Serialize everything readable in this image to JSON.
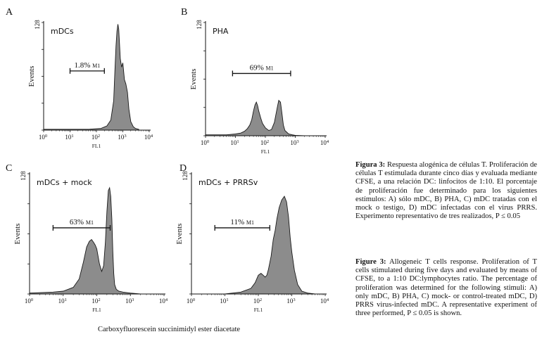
{
  "figure": {
    "xlabel": "Carboxyfluorescein succinimidyl ester diacetate",
    "axis_x_label": "FL1",
    "axis_y_label": "Events",
    "y_max_tick": "128",
    "gate_suffix": "M1",
    "x_tick_base": "10",
    "x_tick_exponents": [
      "0",
      "1",
      "2",
      "3",
      "4"
    ]
  },
  "panels": [
    {
      "letter": "A",
      "title": "mDCs",
      "gate_label": "1.8%"
    },
    {
      "letter": "B",
      "title": "PHA",
      "gate_label": "69%"
    },
    {
      "letter": "C",
      "title": "mDCs + mock",
      "gate_label": "63%"
    },
    {
      "letter": "D",
      "title": "mDCs + PRRSv",
      "gate_label": "11%"
    }
  ],
  "chart_data": [
    {
      "type": "area",
      "panel": "A",
      "title": "mDCs",
      "xlabel": "FL1",
      "ylabel": "Events",
      "xscale": "log",
      "xlim": [
        1,
        10000
      ],
      "ylim": [
        0,
        128
      ],
      "gate": {
        "name": "M1",
        "percent": 1.8,
        "range": [
          10,
          200
        ]
      },
      "x": [
        1,
        50,
        150,
        250,
        350,
        450,
        500,
        550,
        600,
        650,
        700,
        800,
        900,
        1000,
        1150,
        1300,
        1500,
        1700,
        2000,
        2500,
        3000,
        4000
      ],
      "y": [
        1,
        1,
        2,
        5,
        12,
        35,
        70,
        100,
        118,
        126,
        120,
        85,
        75,
        80,
        60,
        55,
        45,
        25,
        10,
        4,
        2,
        1
      ]
    },
    {
      "type": "area",
      "panel": "B",
      "title": "PHA",
      "xlabel": "FL1",
      "ylabel": "Events",
      "xscale": "log",
      "xlim": [
        1,
        10000
      ],
      "ylim": [
        0,
        128
      ],
      "gate": {
        "name": "M1",
        "percent": 69,
        "range": [
          8,
          700
        ]
      },
      "x": [
        1,
        5,
        10,
        15,
        20,
        25,
        30,
        35,
        40,
        45,
        50,
        55,
        60,
        70,
        80,
        100,
        130,
        160,
        200,
        250,
        280,
        320,
        360,
        400,
        450,
        520,
        600,
        800,
        1000,
        2000
      ],
      "y": [
        1,
        1,
        2,
        3,
        5,
        8,
        12,
        18,
        28,
        35,
        38,
        34,
        28,
        20,
        14,
        9,
        6,
        7,
        15,
        32,
        40,
        38,
        25,
        12,
        6,
        4,
        2,
        1,
        0.5,
        0
      ]
    },
    {
      "type": "area",
      "panel": "C",
      "title": "mDCs + mock",
      "xlabel": "FL1",
      "ylabel": "Events",
      "xscale": "log",
      "xlim": [
        1,
        10000
      ],
      "ylim": [
        0,
        128
      ],
      "gate": {
        "name": "M1",
        "percent": 63,
        "range": [
          5,
          250
        ]
      },
      "x": [
        1,
        5,
        10,
        20,
        30,
        40,
        50,
        60,
        70,
        80,
        90,
        100,
        120,
        140,
        160,
        180,
        200,
        220,
        240,
        260,
        280,
        300,
        320,
        340,
        380,
        450,
        600,
        1000,
        2000
      ],
      "y": [
        1,
        2,
        3,
        7,
        16,
        34,
        50,
        56,
        58,
        55,
        52,
        48,
        32,
        24,
        30,
        55,
        88,
        110,
        113,
        104,
        80,
        45,
        22,
        10,
        5,
        3,
        2,
        1,
        0
      ]
    },
    {
      "type": "area",
      "panel": "D",
      "title": "mDCs + PRRSv",
      "xlabel": "FL1",
      "ylabel": "Events",
      "xscale": "log",
      "xlim": [
        1,
        10000
      ],
      "ylim": [
        0,
        128
      ],
      "gate": {
        "name": "M1",
        "percent": 11,
        "range": [
          5,
          220
        ]
      },
      "x": [
        1,
        10,
        30,
        60,
        80,
        100,
        120,
        140,
        160,
        180,
        200,
        240,
        280,
        320,
        360,
        420,
        500,
        600,
        700,
        800,
        900,
        1000,
        1200,
        1500,
        2000,
        3000,
        5000
      ],
      "y": [
        0,
        0,
        2,
        6,
        12,
        20,
        22,
        20,
        18,
        20,
        26,
        40,
        58,
        68,
        80,
        92,
        100,
        104,
        98,
        82,
        60,
        45,
        25,
        10,
        3,
        1,
        0
      ]
    }
  ],
  "caption_es": {
    "label": "Figura 3:",
    "text": "Respuesta alogénica de células T. Proliferación de células T estimulada durante cinco días y evaluada mediante CFSE, a una relación DC: linfocitos de 1:10. El porcentaje de proliferación fue determinado para los siguientes estímulos: A) sólo mDC, B) PHA, C) mDC tratadas con el mock o testigo, D) mDC infectadas con el virus PRRS. Experimento representativo de tres realizados, P ≤ 0.05"
  },
  "caption_en": {
    "label": "Figure 3:",
    "text": "Allogeneic T cells response. Proliferation of T cells stimulated during five days and evaluated by means of CFSE, to a 1:10 DC:lymphocytes ratio. The percentage of proliferation was determined for the following stimuli: A) only mDC, B) PHA, C) mock- or control-treated mDC, D) PRRS virus-infected mDC. A representative experiment of three performed, P ≤ 0.05 is shown."
  }
}
